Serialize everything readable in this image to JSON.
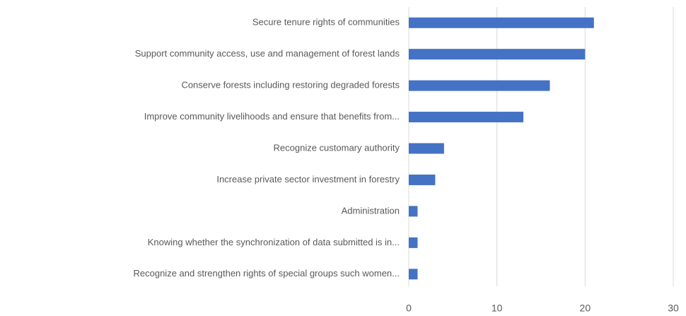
{
  "chart_data": {
    "type": "bar",
    "orientation": "horizontal",
    "categories": [
      "Secure tenure rights of communities",
      "Support community access, use and management of forest lands",
      "Conserve forests including restoring degraded forests",
      "Improve community livelihoods and ensure that benefits from...",
      "Recognize customary authority",
      "Increase private sector investment in forestry",
      "Administration",
      "Knowing whether the synchronization of data submitted is in...",
      "Recognize and strengthen rights of special groups such women..."
    ],
    "values": [
      21,
      20,
      16,
      13,
      4,
      3,
      1,
      1,
      1
    ],
    "color": "#4472c4",
    "xlim": [
      0,
      30
    ],
    "xticks": [
      0,
      10,
      20,
      30
    ],
    "grid": true
  }
}
